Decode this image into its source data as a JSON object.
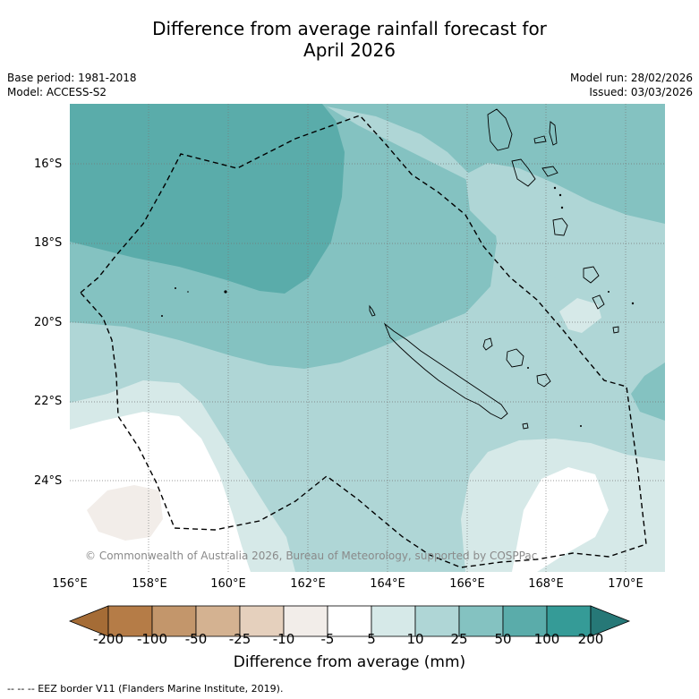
{
  "title_line1": "Difference from average rainfall forecast for",
  "title_line2": "April 2026",
  "base_period": "Base period: 1981-2018",
  "model": "Model: ACCESS-S2",
  "model_run": "Model run: 28/02/2026",
  "issued": "Issued: 03/03/2026",
  "credit": "© Commonwealth of Australia 2026, Bureau of Meteorology, supported by COSPPac",
  "lat_labels": [
    "16°S",
    "18°S",
    "20°S",
    "22°S",
    "24°S"
  ],
  "lon_labels": [
    "156°E",
    "158°E",
    "160°E",
    "162°E",
    "164°E",
    "166°E",
    "168°E",
    "170°E"
  ],
  "colorbar": {
    "labels": [
      "-200",
      "-100",
      "-50",
      "-25",
      "-10",
      "-5",
      "5",
      "10",
      "25",
      "50",
      "100",
      "200"
    ],
    "colors": [
      "#a56c36",
      "#b57c47",
      "#c3966b",
      "#d4b291",
      "#e5d0bd",
      "#f2ede9",
      "#ffffff",
      "#d6e9e8",
      "#afd6d6",
      "#84c2c1",
      "#5aacaa",
      "#359b97",
      "#267877"
    ],
    "title": "Difference from average (mm)"
  },
  "footnote": "--  --  -- EEZ border V11 (Flanders Marine Institute, 2019)."
}
